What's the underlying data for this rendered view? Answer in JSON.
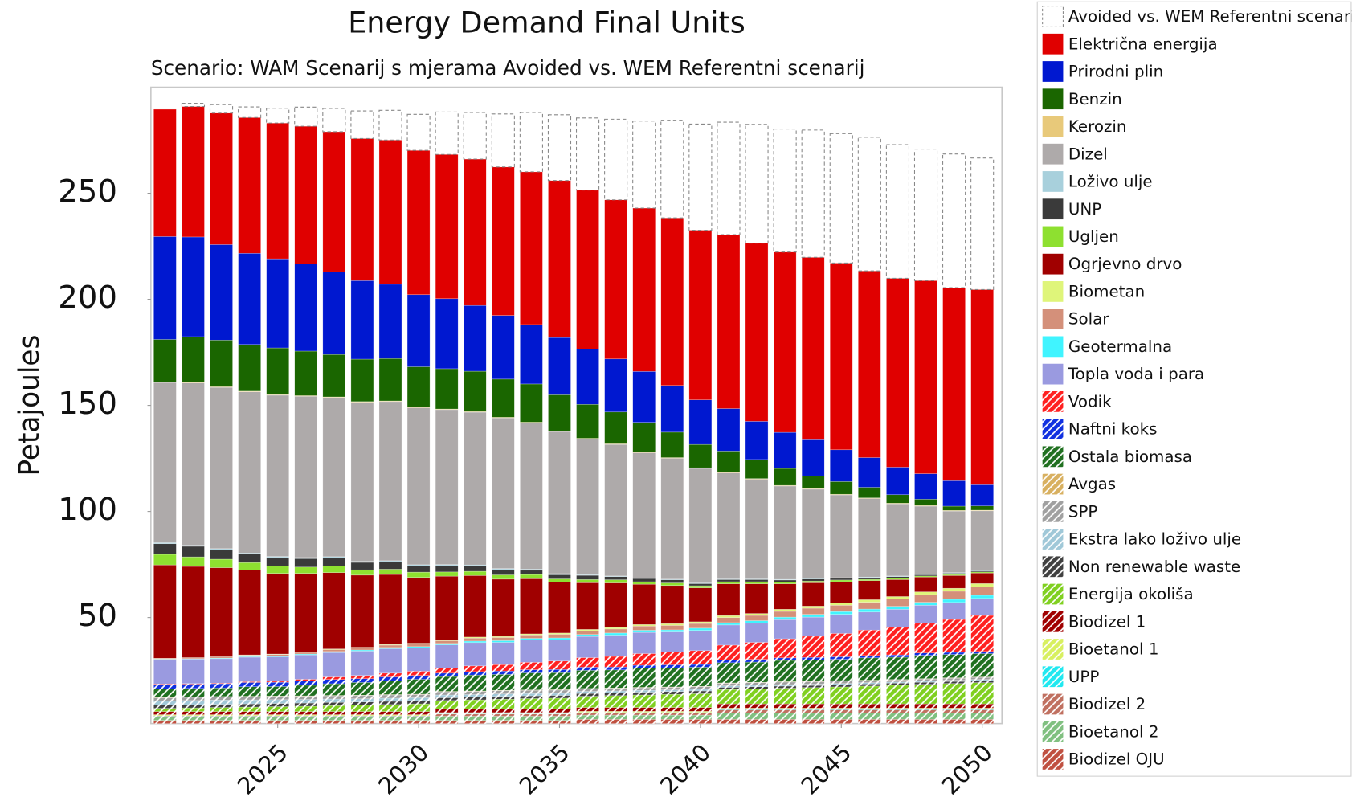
{
  "chart_data": {
    "type": "bar",
    "stacked": true,
    "title": "Energy Demand Final Units",
    "subtitle": "Scenario: WAM Scenarij s mjerama Avoided vs. WEM Referentni scenarij",
    "ylabel": "Petajoules",
    "categories": [
      2021,
      2022,
      2023,
      2024,
      2025,
      2026,
      2027,
      2028,
      2029,
      2030,
      2031,
      2032,
      2033,
      2034,
      2035,
      2036,
      2037,
      2038,
      2039,
      2040,
      2041,
      2042,
      2043,
      2044,
      2045,
      2046,
      2047,
      2048,
      2049,
      2050
    ],
    "xlim": [
      2020.5,
      2050.7
    ],
    "xticks": [
      2025,
      2030,
      2035,
      2040,
      2045,
      2050
    ],
    "ylim": [
      0,
      300
    ],
    "yticks": [
      50,
      100,
      150,
      200,
      250
    ],
    "series": [
      {
        "name": "Avoided vs. WEM Referentni scenarij",
        "color": "#ffffff",
        "dashed": true,
        "values": [
          0,
          1.5,
          4,
          5,
          7,
          9,
          11,
          13,
          14,
          17,
          20,
          22,
          25,
          28,
          31,
          34,
          38,
          41,
          46,
          50,
          53,
          56,
          58,
          60,
          61,
          63,
          63,
          62,
          63,
          62
        ]
      },
      {
        "name": "Električna energija",
        "color": "#e00000",
        "values": [
          60,
          61.5,
          62,
          64,
          64,
          65,
          66,
          67,
          68,
          68,
          68,
          69,
          70,
          72,
          74,
          75,
          75,
          77,
          79,
          80,
          82,
          84,
          85,
          86,
          88,
          88,
          89,
          91,
          91,
          92
        ]
      },
      {
        "name": "Prirodni plin",
        "color": "#0018d0",
        "values": [
          48.5,
          47,
          45,
          43,
          42,
          41,
          39,
          37,
          35,
          34,
          33,
          31,
          30,
          28,
          27,
          26,
          25,
          24,
          22,
          21,
          20,
          18,
          17,
          17,
          15,
          14,
          13,
          12,
          12,
          10
        ]
      },
      {
        "name": "Benzin",
        "color": "#1a6600",
        "values": [
          20,
          21.5,
          22,
          22,
          22,
          21,
          20,
          20,
          20,
          19,
          19,
          19,
          18,
          18,
          17,
          16,
          15,
          14,
          12,
          11,
          10,
          9,
          8,
          6,
          6,
          5,
          4,
          3,
          2,
          2
        ]
      },
      {
        "name": "Kerozin",
        "color": "#e8c97a",
        "values": [
          0.3,
          0.3,
          0.3,
          0.3,
          0.3,
          0.3,
          0.3,
          0.3,
          0.3,
          0.3,
          0.3,
          0.3,
          0.3,
          0.3,
          0.3,
          0.3,
          0.3,
          0.3,
          0.3,
          0.3,
          0.3,
          0.3,
          0.3,
          0.3,
          0.3,
          0.3,
          0.3,
          0.3,
          0.3,
          0.3
        ]
      },
      {
        "name": "Dizel",
        "color": "#aeaaaa",
        "values": [
          75.5,
          76.5,
          76,
          76,
          76,
          76,
          75,
          75,
          75,
          74,
          73,
          72,
          71,
          69,
          67,
          64,
          62,
          59,
          57,
          54,
          50,
          47,
          44,
          42,
          39,
          37,
          34,
          32,
          29,
          28
        ]
      },
      {
        "name": "Loživo ulje",
        "color": "#a8d0dc",
        "values": [
          0.5,
          0.5,
          0.5,
          0.5,
          0.5,
          0.5,
          0.5,
          0.5,
          0.5,
          0.5,
          0.5,
          0.5,
          0.5,
          0.5,
          0.5,
          0.3,
          0.3,
          0.3,
          0.3,
          0.3,
          0.3,
          0.3,
          0.3,
          0.3,
          0.3,
          0.3,
          0.3,
          0.3,
          0.3,
          0.3
        ]
      },
      {
        "name": "UNP",
        "color": "#3a3a3a",
        "values": [
          5,
          5,
          4.5,
          4,
          4,
          4,
          4,
          3.5,
          3.5,
          3,
          3,
          2.5,
          2.5,
          2,
          2,
          2,
          1.5,
          1.5,
          1.5,
          1,
          1,
          1,
          1,
          1,
          0.8,
          0.8,
          0.8,
          0.6,
          0.6,
          0.5
        ]
      },
      {
        "name": "Ugljen",
        "color": "#8ee030",
        "values": [
          5,
          4.5,
          4,
          3.5,
          3.5,
          3,
          3,
          2.5,
          2.5,
          2.5,
          2,
          2,
          2,
          2,
          1.5,
          1.5,
          1.5,
          1.2,
          1.2,
          1,
          1,
          1,
          0.8,
          0.8,
          0.8,
          0.6,
          0.6,
          0.5,
          0.5,
          0.5
        ]
      },
      {
        "name": "Ogrjevno drvo",
        "color": "#a00000",
        "values": [
          44,
          43,
          42,
          40,
          38,
          37,
          36,
          34,
          33,
          31,
          30,
          29,
          27,
          26,
          24,
          22,
          21,
          19,
          18,
          16,
          15,
          14,
          12,
          11,
          10,
          9,
          8,
          7,
          6,
          5
        ]
      },
      {
        "name": "Biometan",
        "color": "#dff57a",
        "values": [
          0.1,
          0.1,
          0.1,
          0.2,
          0.2,
          0.2,
          0.3,
          0.3,
          0.3,
          0.4,
          0.4,
          0.5,
          0.5,
          0.5,
          0.6,
          0.6,
          0.7,
          0.7,
          0.8,
          0.8,
          0.9,
          0.9,
          1,
          1,
          1.1,
          1.2,
          1.2,
          1.3,
          1.4,
          1.5
        ]
      },
      {
        "name": "Solar",
        "color": "#d4907a",
        "values": [
          0.3,
          0.4,
          0.5,
          0.6,
          0.7,
          0.8,
          0.9,
          1,
          1.1,
          1.2,
          1.3,
          1.4,
          1.5,
          1.6,
          1.7,
          1.8,
          1.9,
          2,
          2.1,
          2.2,
          2.4,
          2.5,
          2.7,
          2.9,
          3,
          3.2,
          3.4,
          3.6,
          3.8,
          4
        ]
      },
      {
        "name": "Geotermalna",
        "color": "#40f4ff",
        "values": [
          0.2,
          0.2,
          0.3,
          0.3,
          0.4,
          0.4,
          0.5,
          0.5,
          0.6,
          0.6,
          0.7,
          0.7,
          0.8,
          0.8,
          0.9,
          0.9,
          1,
          1,
          1,
          1.1,
          1.1,
          1.2,
          1.2,
          1.3,
          1.3,
          1.4,
          1.4,
          1.4,
          1.5,
          1.5
        ]
      },
      {
        "name": "Topla voda i para",
        "color": "#9a9ae0",
        "values": [
          11.5,
          11.5,
          11.5,
          11.5,
          11.5,
          11.5,
          11.5,
          11.5,
          11.5,
          11,
          11,
          11,
          10.5,
          10.5,
          10,
          10,
          10,
          10,
          9.5,
          9.5,
          9.5,
          9,
          9,
          9,
          9,
          8.5,
          8.5,
          8.5,
          8,
          8
        ]
      },
      {
        "name": "Vodik",
        "color": "#ff2020",
        "hatch": true,
        "values": [
          0.3,
          0.3,
          0.3,
          0.4,
          0.5,
          0.8,
          1.2,
          1.5,
          1.8,
          2,
          2.3,
          2.7,
          3,
          3.5,
          4,
          4.5,
          5,
          5.5,
          6,
          6.5,
          7,
          8,
          9,
          10,
          11,
          12,
          13,
          14,
          15.5,
          17
        ]
      },
      {
        "name": "Naftni koks",
        "color": "#1030e0",
        "hatch": true,
        "values": [
          2,
          2,
          2,
          2,
          2,
          2,
          2,
          1.8,
          1.8,
          1.8,
          1.6,
          1.6,
          1.6,
          1.5,
          1.5,
          1.5,
          1.4,
          1.4,
          1.4,
          1.3,
          1.3,
          1.3,
          1.2,
          1.2,
          1.2,
          1.1,
          1.1,
          1.1,
          1,
          1
        ]
      },
      {
        "name": "Ostala biomasa",
        "color": "#207020",
        "hatch": true,
        "values": [
          4,
          4,
          4,
          4.5,
          4.5,
          5,
          5.5,
          6,
          6.5,
          7,
          7,
          7.5,
          7.5,
          8,
          8,
          8.5,
          8.5,
          9,
          9,
          9,
          9.5,
          9.5,
          10,
          10,
          10,
          10.5,
          10.5,
          11,
          11,
          11
        ]
      },
      {
        "name": "Avgas",
        "color": "#d8b060",
        "hatch": true,
        "values": [
          0.2,
          0.2,
          0.2,
          0.2,
          0.2,
          0.2,
          0.2,
          0.2,
          0.2,
          0.2,
          0.2,
          0.2,
          0.2,
          0.2,
          0.2,
          0.2,
          0.2,
          0.2,
          0.2,
          0.2,
          0.2,
          0.2,
          0.2,
          0.2,
          0.2,
          0.2,
          0.2,
          0.2,
          0.2,
          0.2
        ]
      },
      {
        "name": "SPP",
        "color": "#a0a0a0",
        "hatch": true,
        "values": [
          1.5,
          1.5,
          1.5,
          1.5,
          1.5,
          1.5,
          1.5,
          1.5,
          1.5,
          1.5,
          1.5,
          1.5,
          1.5,
          1.5,
          1.5,
          1.2,
          1.2,
          1.2,
          1.2,
          1.2,
          1.2,
          1.2,
          1.2,
          1.2,
          1.2,
          1,
          1,
          1,
          1,
          1
        ]
      },
      {
        "name": "Ekstra lako loživo ulje",
        "color": "#a0c8d8",
        "hatch": true,
        "values": [
          2,
          2,
          2,
          1.9,
          1.8,
          1.7,
          1.6,
          1.5,
          1.5,
          1.4,
          1.3,
          1.2,
          1.2,
          1.1,
          1,
          1,
          0.9,
          0.9,
          0.8,
          0.8,
          0.7,
          0.7,
          0.7,
          0.6,
          0.6,
          0.6,
          0.5,
          0.5,
          0.5,
          0.5
        ]
      },
      {
        "name": "Non renewable waste",
        "color": "#404040",
        "hatch": true,
        "values": [
          1.5,
          1.5,
          1.5,
          1.5,
          1.5,
          1.5,
          1.5,
          1.5,
          1.5,
          1.5,
          1.3,
          1.3,
          1.3,
          1.3,
          1.3,
          1.3,
          1.3,
          1.3,
          1.3,
          1.3,
          1,
          1,
          1,
          1,
          1,
          1,
          1,
          1,
          1,
          1
        ]
      },
      {
        "name": "Energija okoliša",
        "color": "#80d020",
        "hatch": true,
        "values": [
          1.5,
          1.7,
          1.9,
          2.1,
          2.3,
          2.5,
          2.8,
          3,
          3.3,
          3.6,
          3.9,
          4.2,
          4.5,
          4.8,
          5,
          5.3,
          5.6,
          5.9,
          6.2,
          6.5,
          6.8,
          7.1,
          7.4,
          7.7,
          8,
          8.4,
          8.8,
          9.2,
          9.6,
          10
        ]
      },
      {
        "name": "Biodizel 1",
        "color": "#a00000",
        "hatch": true,
        "values": [
          1.5,
          1.5,
          1.5,
          1.5,
          1.5,
          1.5,
          1.5,
          1.5,
          1.5,
          1.5,
          1.8,
          1.8,
          1.8,
          1.8,
          1.8,
          1.8,
          1.8,
          1.8,
          1.8,
          1.8,
          2,
          2,
          2,
          2,
          2,
          2,
          2,
          2,
          2,
          2
        ]
      },
      {
        "name": "Bioetanol 1",
        "color": "#d8f060",
        "hatch": true,
        "values": [
          0.5,
          0.5,
          0.5,
          0.5,
          0.5,
          0.5,
          0.5,
          0.5,
          0.5,
          0.5,
          0.5,
          0.5,
          0.5,
          0.5,
          0.5,
          0.5,
          0.5,
          0.5,
          0.5,
          0.5,
          0.5,
          0.5,
          0.5,
          0.5,
          0.5,
          0.5,
          0.5,
          0.5,
          0.5,
          0.5
        ]
      },
      {
        "name": "UPP",
        "color": "#20e8f0",
        "hatch": true,
        "values": [
          0.2,
          0.2,
          0.2,
          0.2,
          0.2,
          0.2,
          0.2,
          0.2,
          0.2,
          0.2,
          0.2,
          0.2,
          0.2,
          0.2,
          0.2,
          0.3,
          0.3,
          0.3,
          0.3,
          0.3,
          0.3,
          0.3,
          0.3,
          0.3,
          0.3,
          0.3,
          0.3,
          0.3,
          0.3,
          0.3
        ]
      },
      {
        "name": "Biodizel 2",
        "color": "#c07060",
        "hatch": true,
        "values": [
          0.5,
          0.5,
          0.5,
          0.5,
          0.5,
          0.5,
          0.5,
          0.5,
          0.5,
          0.5,
          1,
          1,
          1,
          1,
          1,
          1,
          1,
          1,
          1,
          1,
          1.5,
          1.5,
          1.5,
          1.5,
          1.5,
          1.5,
          1.5,
          1.5,
          1.5,
          1.5
        ]
      },
      {
        "name": "Bioetanol 2",
        "color": "#80c080",
        "hatch": true,
        "values": [
          1.5,
          1.5,
          1.5,
          1.5,
          1.5,
          1.5,
          1.5,
          1.5,
          1.5,
          1.5,
          2,
          2,
          2,
          2,
          2,
          2,
          2,
          2,
          2,
          2,
          3,
          3,
          3,
          3,
          3,
          3,
          3,
          3,
          3,
          3
        ]
      },
      {
        "name": "Biodizel OJU",
        "color": "#c05040",
        "hatch": true,
        "values": [
          1.5,
          1.5,
          1.5,
          1.5,
          1.5,
          1.5,
          1.5,
          1.5,
          1.5,
          1.5,
          1.5,
          1.5,
          1.5,
          1.5,
          1.5,
          2,
          2,
          2,
          2,
          2,
          2,
          2,
          2,
          2,
          2,
          2,
          2,
          2,
          2,
          2
        ]
      }
    ]
  }
}
